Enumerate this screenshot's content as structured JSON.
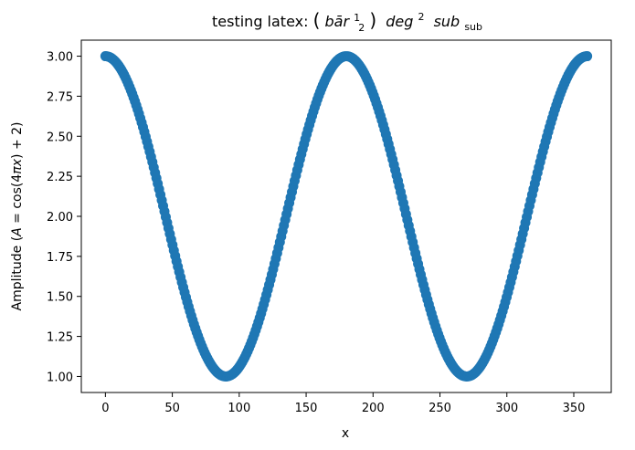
{
  "chart_data": {
    "type": "scatter",
    "title": {
      "prefix": "testing latex: ",
      "bar_text": "bār",
      "frac_num": "1",
      "frac_den": "2",
      "deg": "deg",
      "deg_sup": "2",
      "sub": "sub",
      "sub_sub": "sub"
    },
    "xlabel": "x",
    "ylabel": {
      "prefix": "Amplitude (",
      "A": "A",
      "middle": " = cos(4",
      "pi": "π",
      "x": "x",
      "suffix": ") + 2)"
    },
    "xlim": [
      -18,
      378
    ],
    "ylim": [
      0.9,
      3.1
    ],
    "xticks": [
      0,
      50,
      100,
      150,
      200,
      250,
      300,
      350
    ],
    "xtick_labels": [
      "0",
      "50",
      "100",
      "150",
      "200",
      "250",
      "300",
      "350"
    ],
    "yticks": [
      1.0,
      1.25,
      1.5,
      1.75,
      2.0,
      2.25,
      2.5,
      2.75,
      3.0
    ],
    "ytick_labels": [
      "1.00",
      "1.25",
      "1.50",
      "1.75",
      "2.00",
      "2.25",
      "2.50",
      "2.75",
      "3.00"
    ],
    "grid": false,
    "series": [
      {
        "x_start": 0,
        "x_end": 360,
        "n_points": 360,
        "formula": "cos(4*pi*x) + 2",
        "color": "#1f77b4"
      }
    ]
  }
}
